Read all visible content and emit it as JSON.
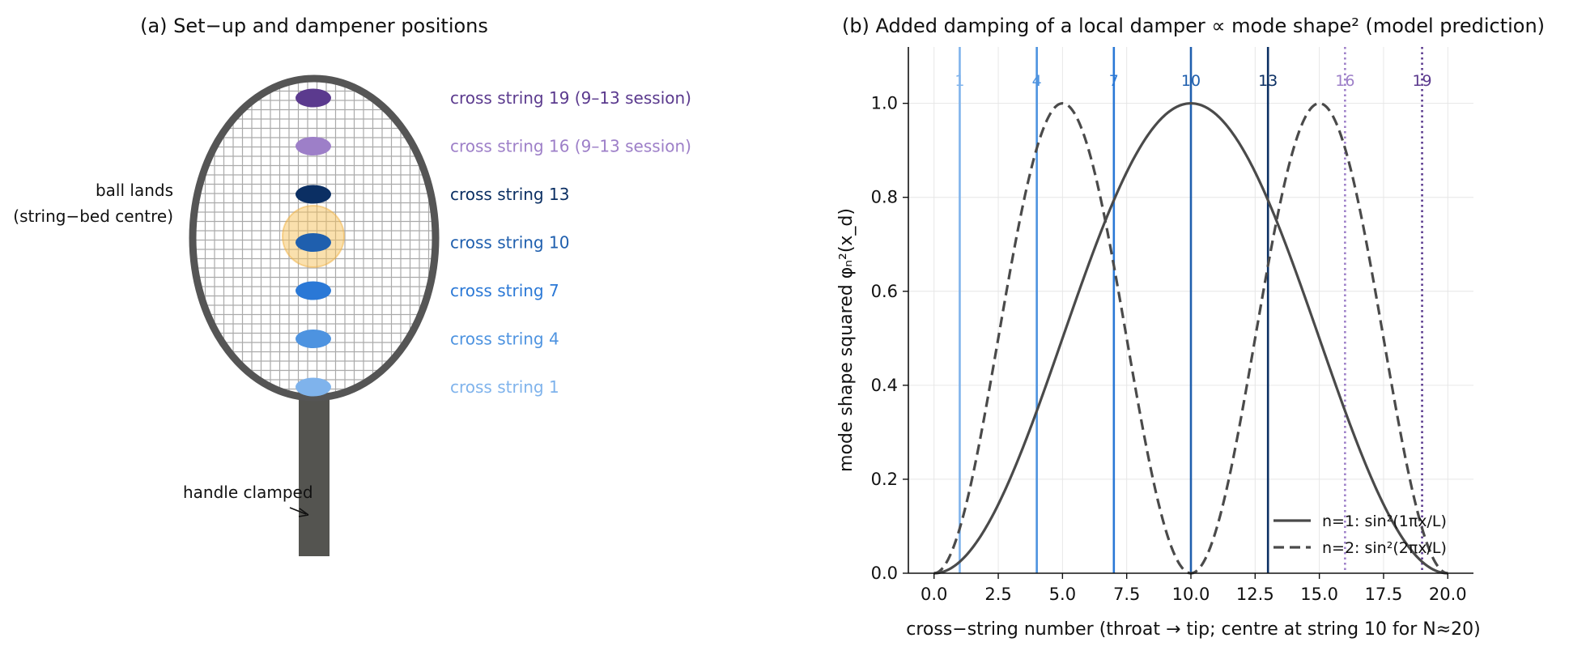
{
  "panel_a": {
    "title": "(a) Set−up and dampener positions",
    "ball_label_line1": "ball lands",
    "ball_label_line2": "(string−bed centre)",
    "handle_label": "handle clamped",
    "colors": {
      "frame": "#555555",
      "handle": "#545450",
      "grid": "#aaaaaa",
      "ball": "#f5c15c"
    },
    "dampeners": [
      {
        "string": 19,
        "label": "cross string 19 (9–13 session)",
        "color": "#5b3a8e"
      },
      {
        "string": 16,
        "label": "cross string 16 (9–13 session)",
        "color": "#9d7fc8"
      },
      {
        "string": 13,
        "label": "cross string 13",
        "color": "#0b2f63"
      },
      {
        "string": 10,
        "label": "cross string 10",
        "color": "#1f5fae"
      },
      {
        "string": 7,
        "label": "cross string 7",
        "color": "#2a78d6"
      },
      {
        "string": 4,
        "label": "cross string 4",
        "color": "#4d93e0"
      },
      {
        "string": 1,
        "label": "cross string 1",
        "color": "#7fb3ec"
      }
    ]
  },
  "chart_data": {
    "type": "line",
    "title": "(b) Added damping of a local damper ∝ mode shape² (model prediction)",
    "xlabel": "cross−string number (throat → tip; centre at string 10 for N≈20)",
    "ylabel": "mode shape squared φₙ²(x_d)",
    "xlim": [
      -1,
      21
    ],
    "ylim": [
      0,
      1.12
    ],
    "xticks": [
      0.0,
      2.5,
      5.0,
      7.5,
      10.0,
      12.5,
      15.0,
      17.5,
      20.0
    ],
    "xtick_labels": [
      "0.0",
      "2.5",
      "5.0",
      "7.5",
      "10.0",
      "12.5",
      "15.0",
      "17.5",
      "20.0"
    ],
    "yticks": [
      0.0,
      0.2,
      0.4,
      0.6,
      0.8,
      1.0
    ],
    "ytick_labels": [
      "0.0",
      "0.2",
      "0.4",
      "0.6",
      "0.8",
      "1.0"
    ],
    "grid": true,
    "legend_position": "lower right",
    "L": 20,
    "series": [
      {
        "name": "n=1: sin²(1πx/L)",
        "mode": 1,
        "dash": "solid",
        "color": "#4a4a4a"
      },
      {
        "name": "n=2: sin²(2πx/L)",
        "mode": 2,
        "dash": "dashed",
        "color": "#4a4a4a"
      }
    ],
    "vlines": [
      {
        "x": 1,
        "label": "1",
        "color": "#7fb3ec",
        "style": "solid"
      },
      {
        "x": 4,
        "label": "4",
        "color": "#4d93e0",
        "style": "solid"
      },
      {
        "x": 7,
        "label": "7",
        "color": "#2a78d6",
        "style": "solid"
      },
      {
        "x": 10,
        "label": "10",
        "color": "#1f5fae",
        "style": "solid"
      },
      {
        "x": 13,
        "label": "13",
        "color": "#0b2f63",
        "style": "solid"
      },
      {
        "x": 16,
        "label": "16",
        "color": "#9d7fc8",
        "style": "dotted"
      },
      {
        "x": 19,
        "label": "19",
        "color": "#5b3a8e",
        "style": "dotted"
      }
    ]
  }
}
